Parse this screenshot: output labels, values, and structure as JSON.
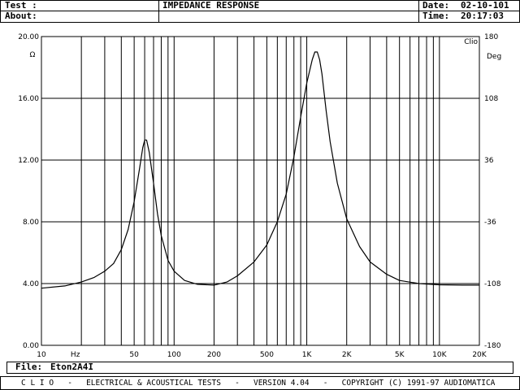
{
  "header": {
    "test_label": "Test :",
    "about_label": "About:",
    "title": "IMPEDANCE RESPONSE",
    "date_label": "Date:",
    "date_value": "02-10-101",
    "time_label": "Time:",
    "time_value": "20:17:03"
  },
  "footer": {
    "file_label": "File:",
    "file_value": "Eton2A4I",
    "banner": "C L I O   -   ELECTRICAL & ACOUSTICAL TESTS   -   VERSION 4.04   -   COPYRIGHT (C) 1991-97 AUDIOMATICA"
  },
  "chart_data": {
    "type": "line",
    "brand_label": "Clio",
    "xlabel": "Hz",
    "ylabel_left": "Ω",
    "ylabel_right": "Deg",
    "x_scale": "log",
    "xlim": [
      10,
      20000
    ],
    "ylim_left": [
      0,
      20
    ],
    "ylim_right": [
      -180,
      180
    ],
    "x_tick_labels": [
      "10",
      "50",
      "100",
      "200",
      "500",
      "1K",
      "2K",
      "5K",
      "10K",
      "20K"
    ],
    "x_tick_values": [
      10,
      50,
      100,
      200,
      500,
      1000,
      2000,
      5000,
      10000,
      20000
    ],
    "y_left_ticks": [
      "0.00",
      "4.00",
      "8.00",
      "12.00",
      "16.00",
      "20.00"
    ],
    "y_right_ticks": [
      "-180",
      "-108",
      "-36",
      "36",
      "108",
      "180"
    ],
    "grid": true,
    "series": [
      {
        "x": [
          10,
          15,
          20,
          25,
          30,
          35,
          40,
          45,
          50,
          55,
          58,
          60,
          62,
          65,
          70,
          75,
          80,
          90,
          100,
          120,
          150,
          200,
          250,
          300,
          400,
          500,
          600,
          700,
          800,
          900,
          1000,
          1100,
          1150,
          1200,
          1250,
          1300,
          1400,
          1500,
          1700,
          2000,
          2500,
          3000,
          4000,
          5000,
          7000,
          10000,
          15000,
          20000
        ],
        "y": [
          3.7,
          3.85,
          4.1,
          4.4,
          4.8,
          5.3,
          6.2,
          7.5,
          9.3,
          11.5,
          12.8,
          13.3,
          13.3,
          12.5,
          10.5,
          8.5,
          7.1,
          5.5,
          4.8,
          4.2,
          3.95,
          3.9,
          4.1,
          4.5,
          5.4,
          6.5,
          8.0,
          9.8,
          12.2,
          14.8,
          17.0,
          18.5,
          19.0,
          19.0,
          18.5,
          17.6,
          15.2,
          13.2,
          10.5,
          8.2,
          6.4,
          5.4,
          4.6,
          4.2,
          4.0,
          3.92,
          3.9,
          3.9
        ]
      }
    ]
  }
}
